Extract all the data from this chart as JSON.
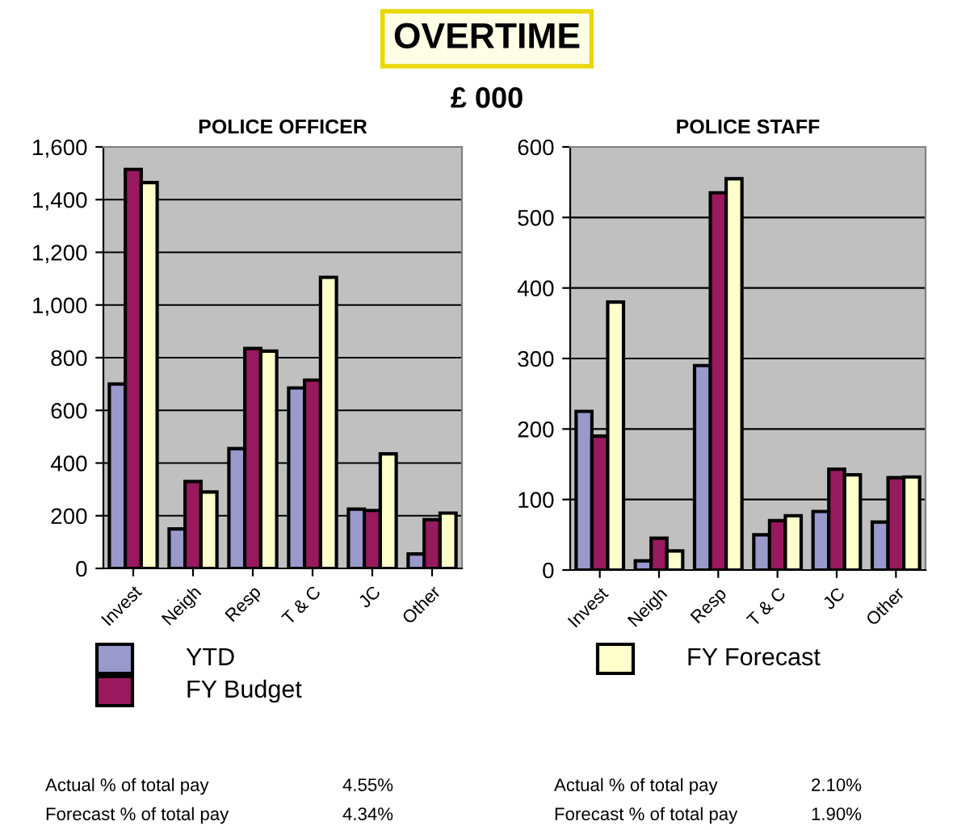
{
  "chart_data": [
    {
      "type": "bar",
      "title": "POLICE OFFICER",
      "categories": [
        "Invest",
        "Neigh",
        "Resp",
        "T & C",
        "JC",
        "Other"
      ],
      "series": [
        {
          "name": "YTD",
          "color": "#9999cc",
          "values": [
            700,
            150,
            455,
            685,
            225,
            55
          ]
        },
        {
          "name": "FY Budget",
          "color": "#99195e",
          "values": [
            1515,
            330,
            835,
            715,
            220,
            185
          ]
        },
        {
          "name": "FY Forecast",
          "color": "#ffffcc",
          "values": [
            1465,
            290,
            825,
            1105,
            435,
            210
          ]
        }
      ],
      "ylim": [
        0,
        1600
      ],
      "yticks": [
        {
          "value": 0,
          "label": "0"
        },
        {
          "value": 200,
          "label": "200"
        },
        {
          "value": 400,
          "label": "400"
        },
        {
          "value": 600,
          "label": "600"
        },
        {
          "value": 800,
          "label": "800"
        },
        {
          "value": 1000,
          "label": "1,000"
        },
        {
          "value": 1200,
          "label": "1,200"
        },
        {
          "value": 1400,
          "label": "1,400"
        },
        {
          "value": 1600,
          "label": "1,600"
        }
      ],
      "grid": "y",
      "legend": "bottom",
      "annotations": [
        "OVERTIME",
        "£ 000",
        "Actual % of total pay",
        "4.55%",
        "Forecast % of total pay",
        "4.34%"
      ]
    },
    {
      "type": "bar",
      "title": "POLICE STAFF",
      "categories": [
        "Invest",
        "Neigh",
        "Resp",
        "T & C",
        "JC",
        "Other"
      ],
      "series": [
        {
          "color": "#9999cc",
          "values": [
            225,
            13,
            290,
            50,
            83,
            68
          ]
        },
        {
          "color": "#99195e",
          "values": [
            190,
            45,
            535,
            70,
            143,
            131
          ]
        },
        {
          "color": "#ffffcc",
          "values": [
            380,
            27,
            555,
            77,
            135,
            132
          ]
        }
      ],
      "ylim": [
        0,
        600
      ],
      "yticks": [
        0,
        100,
        200,
        300,
        400,
        500,
        600
      ],
      "grid": "y",
      "annotations": [
        "Actual % of total pay",
        "2.10%",
        "Forecast % of total pay",
        "1.90%"
      ]
    }
  ]
}
